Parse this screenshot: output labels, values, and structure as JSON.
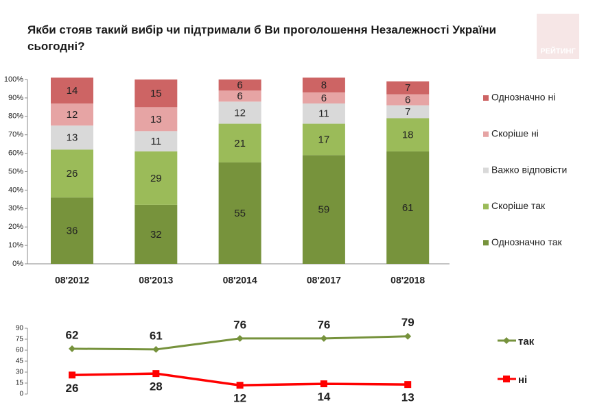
{
  "logo": "РЕЙТИНГ",
  "chart_data": [
    {
      "type": "stacked_bar",
      "title": "Якби стояв такий вибір чи підтримали б Ви проголошення Незалежності України сьогодні?",
      "categories": [
        "08'2012",
        "08'2013",
        "08'2014",
        "08'2017",
        "08'2018"
      ],
      "series": [
        {
          "name": "Однозначно так",
          "color": "#77933c",
          "values": [
            36,
            32,
            55,
            59,
            61
          ]
        },
        {
          "name": "Скоріше так",
          "color": "#9bbb59",
          "values": [
            26,
            29,
            21,
            17,
            18
          ]
        },
        {
          "name": "Важко відповісти",
          "color": "#d9d9d9",
          "values": [
            13,
            11,
            12,
            11,
            7
          ]
        },
        {
          "name": "Скоріше ні",
          "color": "#e6a4a4",
          "values": [
            12,
            13,
            6,
            6,
            6
          ]
        },
        {
          "name": "Однозначно ні",
          "color": "#cd6464",
          "values": [
            14,
            15,
            6,
            8,
            7
          ]
        }
      ],
      "ylim": [
        0,
        100
      ],
      "yticks": [
        {
          "value": 0,
          "label": "0%"
        },
        {
          "value": 10,
          "label": "10%"
        },
        {
          "value": 20,
          "label": "20%"
        },
        {
          "value": 30,
          "label": "30%"
        },
        {
          "value": 40,
          "label": "40%"
        },
        {
          "value": 50,
          "label": "50%"
        },
        {
          "value": 60,
          "label": "60%"
        },
        {
          "value": 70,
          "label": "70%"
        },
        {
          "value": 80,
          "label": "80%"
        },
        {
          "value": 90,
          "label": "90%"
        },
        {
          "value": 100,
          "label": "100%"
        }
      ],
      "grid": false,
      "legend": "right"
    },
    {
      "type": "line",
      "series": [
        {
          "name": "так",
          "color": "#76923c",
          "marker": "diamond",
          "values": [
            62,
            61,
            76,
            76,
            79
          ]
        },
        {
          "name": "ні",
          "color": "#ff0000",
          "marker": "square",
          "values": [
            26,
            28,
            12,
            14,
            13
          ]
        }
      ],
      "ylim": [
        0,
        90
      ],
      "yticks": [
        0,
        15,
        30,
        45,
        60,
        75,
        90
      ],
      "grid": false,
      "legend": "right"
    }
  ]
}
